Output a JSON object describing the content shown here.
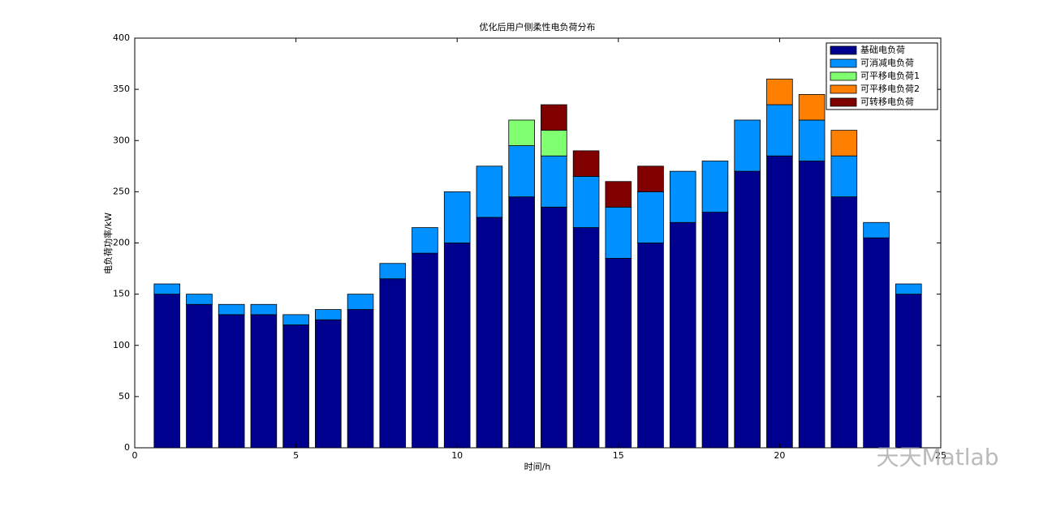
{
  "chart_data": {
    "type": "stacked_bar",
    "title": "优化后用户侧柔性电负荷分布",
    "x_label": "时间/h",
    "y_label": "电负荷功率/kW",
    "x": [
      1,
      2,
      3,
      4,
      5,
      6,
      7,
      8,
      9,
      10,
      11,
      12,
      13,
      14,
      15,
      16,
      17,
      18,
      19,
      20,
      21,
      22,
      23,
      24
    ],
    "xlim": [
      0,
      25
    ],
    "xticks": [
      0,
      5,
      10,
      15,
      20,
      25
    ],
    "ylim": [
      0,
      400
    ],
    "yticks": [
      0,
      50,
      100,
      150,
      200,
      250,
      300,
      350,
      400
    ],
    "legend_position": "upper-right",
    "series": [
      {
        "name": "基础电负荷",
        "color": "#00008f",
        "values": [
          150,
          140,
          130,
          130,
          120,
          125,
          135,
          165,
          190,
          200,
          225,
          245,
          235,
          215,
          185,
          200,
          220,
          230,
          270,
          285,
          280,
          245,
          205,
          150
        ]
      },
      {
        "name": "可消减电负荷",
        "color": "#0090ff",
        "values": [
          10,
          10,
          10,
          10,
          10,
          10,
          15,
          15,
          25,
          50,
          50,
          50,
          50,
          50,
          50,
          50,
          50,
          50,
          50,
          50,
          40,
          40,
          15,
          10
        ]
      },
      {
        "name": "可平移电负荷1",
        "color": "#80ff70",
        "values": [
          0,
          0,
          0,
          0,
          0,
          0,
          0,
          0,
          0,
          0,
          0,
          25,
          25,
          0,
          0,
          0,
          0,
          0,
          0,
          0,
          0,
          0,
          0,
          0
        ]
      },
      {
        "name": "可平移电负荷2",
        "color": "#ff8000",
        "values": [
          0,
          0,
          0,
          0,
          0,
          0,
          0,
          0,
          0,
          0,
          0,
          0,
          0,
          0,
          0,
          0,
          0,
          0,
          0,
          25,
          25,
          25,
          0,
          0
        ]
      },
      {
        "name": "可转移电负荷",
        "color": "#800000",
        "values": [
          0,
          0,
          0,
          0,
          0,
          0,
          0,
          0,
          0,
          0,
          0,
          0,
          25,
          25,
          25,
          25,
          0,
          0,
          0,
          0,
          0,
          0,
          0,
          0
        ]
      }
    ],
    "watermark": "天天Matlab"
  }
}
